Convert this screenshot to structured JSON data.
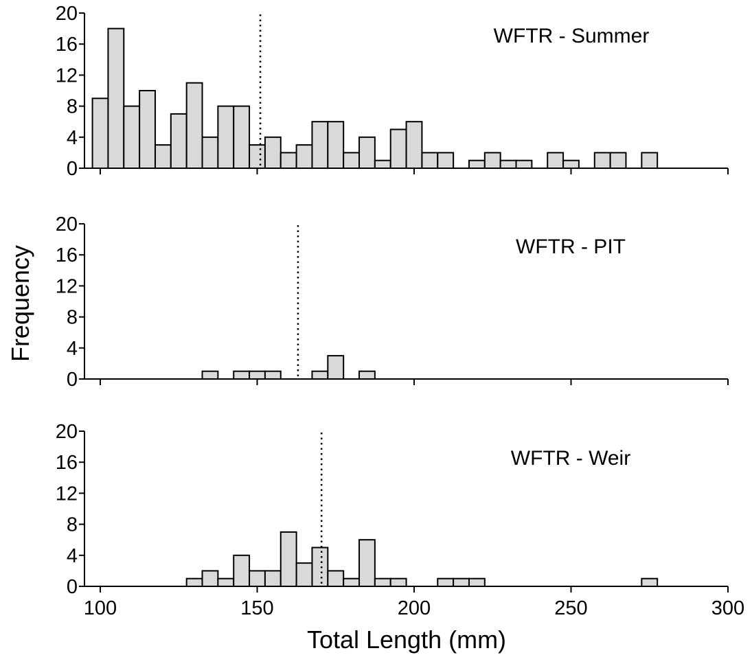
{
  "chart_data": {
    "type": "bar",
    "xlabel": "Total Length (mm)",
    "ylabel": "Frequency",
    "xlim": [
      100,
      300
    ],
    "ylim": [
      0,
      20
    ],
    "bin_width": 5,
    "x_ticks": [
      100,
      150,
      200,
      250,
      300
    ],
    "y_ticks": [
      0,
      4,
      8,
      12,
      16,
      20
    ],
    "bar_color": "#d9d9d9",
    "panels": [
      {
        "title": "WFTR - Summer",
        "mean_line": 151,
        "show_x_tick_labels": false,
        "bins": [
          {
            "x": 97.5,
            "count": 9
          },
          {
            "x": 102.5,
            "count": 18
          },
          {
            "x": 107.5,
            "count": 8
          },
          {
            "x": 112.5,
            "count": 10
          },
          {
            "x": 117.5,
            "count": 3
          },
          {
            "x": 122.5,
            "count": 7
          },
          {
            "x": 127.5,
            "count": 11
          },
          {
            "x": 132.5,
            "count": 4
          },
          {
            "x": 137.5,
            "count": 8
          },
          {
            "x": 142.5,
            "count": 8
          },
          {
            "x": 147.5,
            "count": 3
          },
          {
            "x": 152.5,
            "count": 4
          },
          {
            "x": 157.5,
            "count": 2
          },
          {
            "x": 162.5,
            "count": 3
          },
          {
            "x": 167.5,
            "count": 6
          },
          {
            "x": 172.5,
            "count": 6
          },
          {
            "x": 177.5,
            "count": 2
          },
          {
            "x": 182.5,
            "count": 4
          },
          {
            "x": 187.5,
            "count": 1
          },
          {
            "x": 192.5,
            "count": 5
          },
          {
            "x": 197.5,
            "count": 6
          },
          {
            "x": 202.5,
            "count": 2
          },
          {
            "x": 207.5,
            "count": 2
          },
          {
            "x": 217.5,
            "count": 1
          },
          {
            "x": 222.5,
            "count": 2
          },
          {
            "x": 227.5,
            "count": 1
          },
          {
            "x": 232.5,
            "count": 1
          },
          {
            "x": 242.5,
            "count": 2
          },
          {
            "x": 247.5,
            "count": 1
          },
          {
            "x": 257.5,
            "count": 2
          },
          {
            "x": 262.5,
            "count": 2
          },
          {
            "x": 272.5,
            "count": 2
          }
        ]
      },
      {
        "title": "WFTR - PIT",
        "mean_line": 163,
        "show_x_tick_labels": false,
        "bins": [
          {
            "x": 132.5,
            "count": 1
          },
          {
            "x": 142.5,
            "count": 1
          },
          {
            "x": 147.5,
            "count": 1
          },
          {
            "x": 152.5,
            "count": 1
          },
          {
            "x": 167.5,
            "count": 1
          },
          {
            "x": 172.5,
            "count": 3
          },
          {
            "x": 182.5,
            "count": 1
          }
        ]
      },
      {
        "title": "WFTR - Weir",
        "mean_line": 170.5,
        "show_x_tick_labels": true,
        "bins": [
          {
            "x": 127.5,
            "count": 1
          },
          {
            "x": 132.5,
            "count": 2
          },
          {
            "x": 137.5,
            "count": 1
          },
          {
            "x": 142.5,
            "count": 4
          },
          {
            "x": 147.5,
            "count": 2
          },
          {
            "x": 152.5,
            "count": 2
          },
          {
            "x": 157.5,
            "count": 7
          },
          {
            "x": 162.5,
            "count": 3
          },
          {
            "x": 167.5,
            "count": 5
          },
          {
            "x": 172.5,
            "count": 2
          },
          {
            "x": 177.5,
            "count": 1
          },
          {
            "x": 182.5,
            "count": 6
          },
          {
            "x": 187.5,
            "count": 1
          },
          {
            "x": 192.5,
            "count": 1
          },
          {
            "x": 207.5,
            "count": 1
          },
          {
            "x": 212.5,
            "count": 1
          },
          {
            "x": 217.5,
            "count": 1
          },
          {
            "x": 272.5,
            "count": 1
          }
        ]
      }
    ]
  }
}
